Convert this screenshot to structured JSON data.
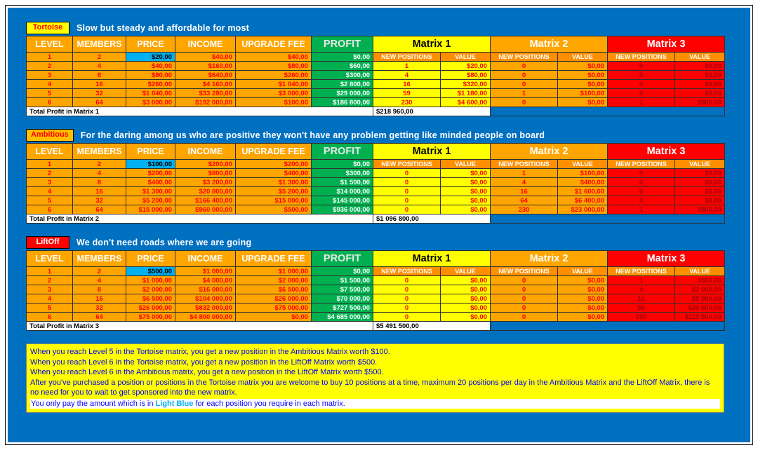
{
  "colors": {
    "panel-blue": "#0070C0",
    "orange": "#FFA500",
    "orange-deep": "#FF8F00",
    "yellow": "#FFFF00",
    "green": "#00B050",
    "red": "#FF0000",
    "light-blue": "#00B0F0",
    "data-red": "#FF0000",
    "red-dark-text": "#9C0006",
    "note-blue": "#0000FF"
  },
  "table": {
    "columns": [
      "LEVEL",
      "MEMBERS",
      "PRICE",
      "INCOME",
      "UPGRADE FEE",
      "PROFIT"
    ],
    "matrix_headers": [
      "Matrix 1",
      "Matrix 2",
      "Matrix 3"
    ],
    "sub_headers": [
      "NEW POSITIONS",
      "VALUE"
    ]
  },
  "sections": [
    {
      "badge": "Tortoise",
      "badge_bg": "#FFFF00",
      "badge_fg": "#FF0000",
      "tagline": "Slow but steady and affordable for most",
      "rows": [
        [
          "1",
          "2",
          "$20,00",
          "$40,00",
          "$40,00",
          "$0,00"
        ],
        [
          "2",
          "4",
          "$40,00",
          "$160,00",
          "$80,00",
          "$60,00",
          "1",
          "$20,00",
          "0",
          "$0,00",
          "0",
          "$0,00"
        ],
        [
          "3",
          "8",
          "$80,00",
          "$640,00",
          "$260,00",
          "$300,00",
          "4",
          "$80,00",
          "0",
          "$0,00",
          "0",
          "$0,00"
        ],
        [
          "4",
          "16",
          "$260,00",
          "$4 160,00",
          "$1 040,00",
          "$2 800,00",
          "16",
          "$320,00",
          "0",
          "$0,00",
          "0",
          "$0,00"
        ],
        [
          "5",
          "32",
          "$1 040,00",
          "$33 280,00",
          "$3 000,00",
          "$29 000,00",
          "59",
          "$1 180,00",
          "1",
          "$100,00",
          "0",
          "$0,00"
        ],
        [
          "6",
          "64",
          "$3 000,00",
          "$192 000,00",
          "$100,00",
          "$186 800,00",
          "230",
          "$4 600,00",
          "0",
          "$0,00",
          "1",
          "$500,00"
        ]
      ],
      "total_label": "Total Profit in Matrix 1",
      "total_value": "$218 960,00"
    },
    {
      "badge": "Ambitious",
      "badge_bg": "#FFC000",
      "badge_fg": "#FF0000",
      "tagline": "For the daring among us who are positive they won't have any problem getting like minded people on board",
      "rows": [
        [
          "1",
          "2",
          "$100,00",
          "$200,00",
          "$200,00",
          "$0,00"
        ],
        [
          "2",
          "4",
          "$200,00",
          "$800,00",
          "$400,00",
          "$300,00",
          "0",
          "$0,00",
          "1",
          "$100,00",
          "0",
          "$0,00"
        ],
        [
          "3",
          "8",
          "$400,00",
          "$3 200,00",
          "$1 300,00",
          "$1 500,00",
          "0",
          "$0,00",
          "4",
          "$400,00",
          "0",
          "$0,00"
        ],
        [
          "4",
          "16",
          "$1 300,00",
          "$20 800,00",
          "$5 200,00",
          "$14 000,00",
          "0",
          "$0,00",
          "16",
          "$1 600,00",
          "0",
          "$0,00"
        ],
        [
          "5",
          "32",
          "$5 200,00",
          "$166 400,00",
          "$15 000,00",
          "$145 000,00",
          "0",
          "$0,00",
          "64",
          "$6 400,00",
          "0",
          "$0,00"
        ],
        [
          "6",
          "64",
          "$15 000,00",
          "$960 000,00",
          "$500,00",
          "$936 000,00",
          "0",
          "$0,00",
          "230",
          "$23 000,00",
          "1",
          "$500,00"
        ]
      ],
      "total_label": "Total Profit in Matrix 2",
      "total_value": "$1 096 800,00"
    },
    {
      "badge": "LiftOff",
      "badge_bg": "#FF0000",
      "badge_fg": "#FFFFFF",
      "tagline": "We don't need roads where we are going",
      "rows": [
        [
          "1",
          "2",
          "$500,00",
          "$1 000,00",
          "$1 000,00",
          "$0,00"
        ],
        [
          "2",
          "4",
          "$1 000,00",
          "$4 000,00",
          "$2 000,00",
          "$1 500,00",
          "0",
          "$0,00",
          "0",
          "$0,00",
          "1",
          "$500,00"
        ],
        [
          "3",
          "8",
          "$2 000,00",
          "$16 000,00",
          "$6 500,00",
          "$7 500,00",
          "0",
          "$0,00",
          "0",
          "$0,00",
          "4",
          "$2 000,00"
        ],
        [
          "4",
          "16",
          "$6 500,00",
          "$104 000,00",
          "$26 000,00",
          "$70 000,00",
          "0",
          "$0,00",
          "0",
          "$0,00",
          "16",
          "$8 000,00"
        ],
        [
          "5",
          "32",
          "$26 000,00",
          "$832 000,00",
          "$75 000,00",
          "$727 500,00",
          "0",
          "$0,00",
          "0",
          "$0,00",
          "59",
          "$29 500,00"
        ],
        [
          "6",
          "64",
          "$75 000,00",
          "$4 800 000,00",
          "$0,00",
          "$4 685 000,00",
          "0",
          "$0,00",
          "0",
          "$0,00",
          "230",
          "$115 000,00"
        ]
      ],
      "total_label": "Total Profit in Matrix 3",
      "total_value": "$5 491 500,00"
    }
  ],
  "footer": {
    "lines": [
      "When you reach Level 5 in the Tortoise matrix, you get a new position in the Ambitious Matrix worth $100.",
      "When you reach Level 6 in the Tortoise matrix, you get a new position in the LiftOff Matrix worth $500.",
      "When you reach Level 6 in the Ambitious matrix, you get a new position in the LiftOff Matrix worth $500.",
      "After you've purchased a position or positions in the Tortoise matrix you are welcome to buy 10 positions at a time, maximum 20 positions per day in the Ambitious Matrix and the LiftOff Matrix, there is no need for you to wait to get sponsored into the new matrix."
    ],
    "highlight_line": {
      "prefix": "You only pay the amount which is in ",
      "highlight": "Light Blue",
      "suffix": " for each position you require in each matrix."
    }
  }
}
